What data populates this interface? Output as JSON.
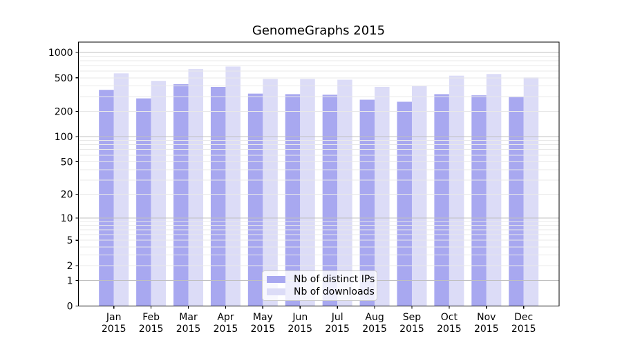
{
  "figure": {
    "background": "#ffffff"
  },
  "chart_data": {
    "type": "bar",
    "title": "GenomeGraphs 2015",
    "categories": [
      "Jan\n2015",
      "Feb\n2015",
      "Mar\n2015",
      "Apr\n2015",
      "May\n2015",
      "Jun\n2015",
      "Jul\n2015",
      "Aug\n2015",
      "Sep\n2015",
      "Oct\n2015",
      "Nov\n2015",
      "Dec\n2015"
    ],
    "series": [
      {
        "name": "Nb of distinct IPs",
        "color": "#a8a8f0",
        "values": [
          360,
          285,
          420,
          390,
          325,
          320,
          315,
          275,
          260,
          320,
          310,
          295
        ]
      },
      {
        "name": "Nb of downloads",
        "color": "#dcdcf7",
        "values": [
          565,
          460,
          635,
          680,
          485,
          485,
          475,
          390,
          405,
          530,
          555,
          505
        ]
      }
    ],
    "xlabel": "",
    "ylabel": "",
    "yscale": "log1p",
    "yticks": [
      0,
      1,
      2,
      5,
      10,
      20,
      50,
      100,
      200,
      500,
      1000
    ],
    "ylim": [
      0,
      1325
    ],
    "grid": {
      "major_ticks": [
        1,
        10,
        100,
        1000
      ],
      "major_color": "#c0c0c0",
      "minor_color": "#e8e8e8",
      "vertical": false
    },
    "legend_position": "lower center",
    "axis_color": "#000000"
  }
}
